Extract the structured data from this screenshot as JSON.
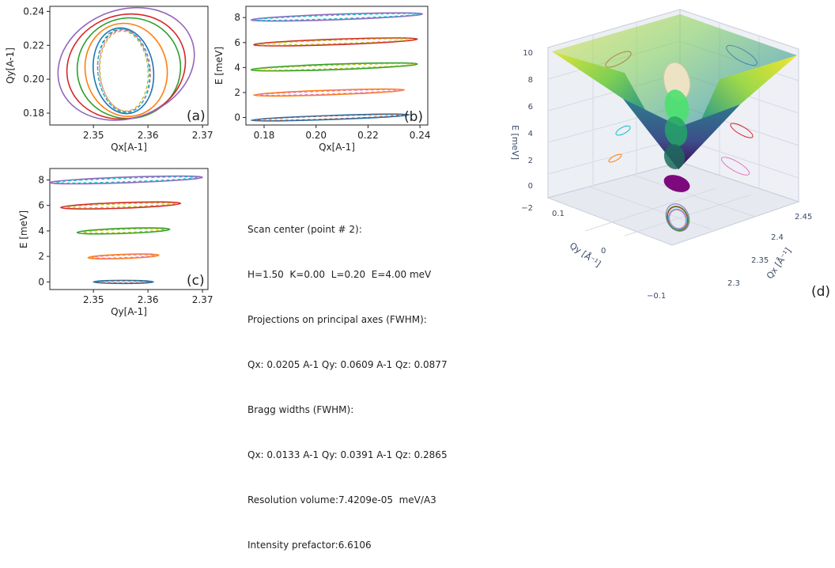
{
  "colors": [
    "#1f77b4",
    "#ff7f0e",
    "#2ca02c",
    "#d62728",
    "#9467bd",
    "#8c564b",
    "#e377c2",
    "#7f7f7f",
    "#bcbd22",
    "#17becf"
  ],
  "chart_data": [
    {
      "id": "a",
      "type": "ellipse-contours",
      "panel_label": "(a)",
      "xlabel": "Qx[A-1]",
      "ylabel": "Qy[A-1]",
      "xlim": [
        2.342,
        2.371
      ],
      "ylim": [
        0.173,
        0.243
      ],
      "xticks": [
        {
          "v": 2.35,
          "t": "2.35"
        },
        {
          "v": 2.36,
          "t": "2.36"
        },
        {
          "v": 2.37,
          "t": "2.37"
        }
      ],
      "yticks": [
        {
          "v": 0.18,
          "t": 0.18
        },
        {
          "v": 0.2,
          "t": "0.20"
        },
        {
          "v": 0.22,
          "t": 0.22
        },
        {
          "v": 0.24,
          "t": 0.24
        }
      ],
      "series": [
        {
          "cx": 2.3555,
          "cy": 0.205,
          "rx": 0.0055,
          "ry": 0.0254,
          "rot": -8,
          "color": "#1f77b4"
        },
        {
          "cx": 2.356,
          "cy": 0.2055,
          "rx": 0.0075,
          "ry": 0.0276,
          "rot": -12,
          "color": "#ff7f0e"
        },
        {
          "cx": 2.3565,
          "cy": 0.2065,
          "rx": 0.0095,
          "ry": 0.0296,
          "rot": -16,
          "color": "#2ca02c"
        },
        {
          "cx": 2.356,
          "cy": 0.2075,
          "rx": 0.011,
          "ry": 0.0305,
          "rot": -18,
          "color": "#d62728"
        },
        {
          "cx": 2.356,
          "cy": 0.209,
          "rx": 0.0128,
          "ry": 0.032,
          "rot": -20,
          "color": "#9467bd"
        },
        {
          "cx": 2.3556,
          "cy": 0.205,
          "rx": 0.0048,
          "ry": 0.0244,
          "rot": -5,
          "color": "#8c564b",
          "dash": true
        },
        {
          "cx": 2.3557,
          "cy": 0.205,
          "rx": 0.0046,
          "ry": 0.024,
          "rot": -5,
          "color": "#e377c2",
          "dash": true
        },
        {
          "cx": 2.3556,
          "cy": 0.2048,
          "rx": 0.0044,
          "ry": 0.0236,
          "rot": -4,
          "color": "#bcbd22",
          "dash": true
        },
        {
          "cx": 2.3555,
          "cy": 0.205,
          "rx": 0.0047,
          "ry": 0.0248,
          "rot": -6,
          "color": "#17becf",
          "dash": true
        }
      ]
    },
    {
      "id": "b",
      "type": "ellipse-contours",
      "panel_label": "(b)",
      "xlabel": "Qx[A-1]",
      "ylabel": "E [meV]",
      "xlim": [
        0.173,
        0.243
      ],
      "ylim": [
        -0.6,
        8.9
      ],
      "xticks": [
        {
          "v": 0.18,
          "t": "0.18"
        },
        {
          "v": 0.2,
          "t": "0.20"
        },
        {
          "v": 0.22,
          "t": "0.22"
        },
        {
          "v": 0.24,
          "t": "0.24"
        }
      ],
      "yticks": [
        {
          "v": 0,
          "t": "0"
        },
        {
          "v": 2,
          "t": "2"
        },
        {
          "v": 4,
          "t": "4"
        },
        {
          "v": 6,
          "t": "6"
        },
        {
          "v": 8,
          "t": "8"
        }
      ],
      "series": [
        {
          "cx": 0.2055,
          "cy": 0.0,
          "rx": 0.0305,
          "ry": 0.16,
          "rot": -2,
          "color": "#1f77b4"
        },
        {
          "cx": 0.205,
          "cy": 2.0,
          "rx": 0.029,
          "ry": 0.18,
          "rot": -2,
          "color": "#ff7f0e"
        },
        {
          "cx": 0.207,
          "cy": 4.05,
          "rx": 0.032,
          "ry": 0.22,
          "rot": -2,
          "color": "#2ca02c"
        },
        {
          "cx": 0.2075,
          "cy": 6.05,
          "rx": 0.0315,
          "ry": 0.22,
          "rot": -2,
          "color": "#d62728"
        },
        {
          "cx": 0.208,
          "cy": 8.05,
          "rx": 0.033,
          "ry": 0.22,
          "rot": -2,
          "color": "#9467bd"
        },
        {
          "cx": 0.205,
          "cy": 0.0,
          "rx": 0.029,
          "ry": 0.12,
          "rot": -2,
          "color": "#8c564b",
          "dash": true
        },
        {
          "cx": 0.205,
          "cy": 2.0,
          "rx": 0.028,
          "ry": 0.12,
          "rot": -2,
          "color": "#e377c2",
          "dash": true
        },
        {
          "cx": 0.207,
          "cy": 4.05,
          "rx": 0.031,
          "ry": 0.14,
          "rot": -2,
          "color": "#bcbd22",
          "dash": true
        },
        {
          "cx": 0.2075,
          "cy": 6.05,
          "rx": 0.03,
          "ry": 0.14,
          "rot": -2,
          "color": "#bcbd22",
          "dash": true
        },
        {
          "cx": 0.208,
          "cy": 8.05,
          "rx": 0.032,
          "ry": 0.14,
          "rot": -2,
          "color": "#17becf",
          "dash": true
        }
      ]
    },
    {
      "id": "c",
      "type": "ellipse-contours",
      "panel_label": "(c)",
      "xlabel": "Qy[A-1]",
      "ylabel": "E [meV]",
      "xlim": [
        2.342,
        2.371
      ],
      "ylim": [
        -0.6,
        8.9
      ],
      "xticks": [
        {
          "v": 2.35,
          "t": "2.35"
        },
        {
          "v": 2.36,
          "t": "2.36"
        },
        {
          "v": 2.37,
          "t": "2.37"
        }
      ],
      "yticks": [
        {
          "v": 0,
          "t": "0"
        },
        {
          "v": 2,
          "t": "2"
        },
        {
          "v": 4,
          "t": "4"
        },
        {
          "v": 6,
          "t": "6"
        },
        {
          "v": 8,
          "t": "8"
        }
      ],
      "series": [
        {
          "cx": 2.3555,
          "cy": 0.0,
          "rx": 0.0055,
          "ry": 0.12,
          "rot": 0,
          "color": "#1f77b4"
        },
        {
          "cx": 2.3555,
          "cy": 2.0,
          "rx": 0.0065,
          "ry": 0.16,
          "rot": -2,
          "color": "#ff7f0e"
        },
        {
          "cx": 2.3555,
          "cy": 4.0,
          "rx": 0.0085,
          "ry": 0.2,
          "rot": -2,
          "color": "#2ca02c"
        },
        {
          "cx": 2.355,
          "cy": 6.0,
          "rx": 0.011,
          "ry": 0.22,
          "rot": -2,
          "color": "#d62728"
        },
        {
          "cx": 2.356,
          "cy": 8.0,
          "rx": 0.014,
          "ry": 0.22,
          "rot": -2,
          "color": "#9467bd"
        },
        {
          "cx": 2.3555,
          "cy": 0.0,
          "rx": 0.0048,
          "ry": 0.08,
          "rot": 0,
          "color": "#8c564b",
          "dash": true
        },
        {
          "cx": 2.3555,
          "cy": 2.0,
          "rx": 0.0058,
          "ry": 0.1,
          "rot": -2,
          "color": "#e377c2",
          "dash": true
        },
        {
          "cx": 2.3555,
          "cy": 4.0,
          "rx": 0.0075,
          "ry": 0.12,
          "rot": -2,
          "color": "#bcbd22",
          "dash": true
        },
        {
          "cx": 2.355,
          "cy": 6.0,
          "rx": 0.01,
          "ry": 0.12,
          "rot": -2,
          "color": "#bcbd22",
          "dash": true
        },
        {
          "cx": 2.356,
          "cy": 8.0,
          "rx": 0.013,
          "ry": 0.14,
          "rot": -2,
          "color": "#17becf",
          "dash": true
        }
      ]
    },
    {
      "id": "d",
      "type": "surface-3d",
      "panel_label": "(d)",
      "zlabel": "E [meV]",
      "xlabel": "Qx [Å⁻¹]",
      "ylabel": "Qy [Å⁻¹]",
      "zticks": [
        "10",
        "8",
        "6",
        "4",
        "2",
        "0",
        "−2"
      ],
      "xticks": [
        "2.45",
        "2.4",
        "2.35",
        "2.3"
      ],
      "yticks": [
        "0.1",
        "0",
        "−0.1"
      ],
      "colorscale": [
        "#440154",
        "#3b528b",
        "#21918c",
        "#5ec962",
        "#fde725"
      ]
    }
  ],
  "info": {
    "lines": [
      "Scan center (point # 2):",
      "H=1.50  K=0.00  L=0.20  E=4.00 meV",
      "Projections on principal axes (FWHM):",
      "Qx: 0.0205 A-1 Qy: 0.0609 A-1 Qz: 0.0877",
      "Bragg widths (FWHM):",
      "Qx: 0.0133 A-1 Qy: 0.0391 A-1 Qz: 0.2865",
      "Resolution volume:7.4209e-05  meV/A3",
      "Intensity prefactor:6.6106"
    ]
  }
}
